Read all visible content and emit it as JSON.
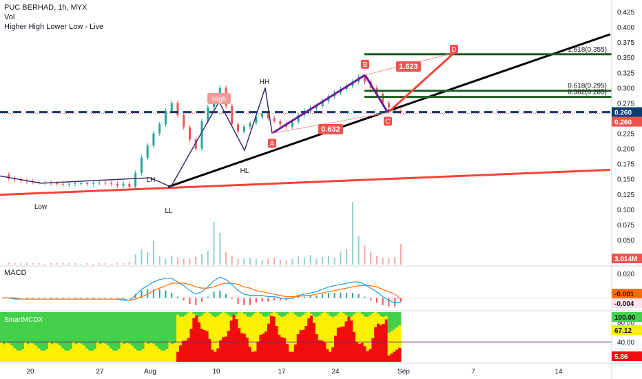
{
  "header": {
    "title": "PUC BERHAD, 1h, MYX",
    "volume_label": "Vol",
    "indicator_label": "Higher High Lower Low - Live"
  },
  "panes": {
    "macd_label": "MACD",
    "smart_label": "SmartMCDX"
  },
  "chart_data": [
    {
      "type": "candlestick",
      "title": "PUC BERHAD, 1h, MYX",
      "x_ticks": [
        "20",
        "27",
        "Aug",
        "10",
        "17",
        "24",
        "Sep",
        "7",
        "14"
      ],
      "y_ticks": [
        "0.425",
        "0.400",
        "0.375",
        "0.350",
        "0.325",
        "0.300",
        "0.275",
        "0.250",
        "0.225",
        "0.200",
        "0.175",
        "0.150",
        "0.125",
        "0.100",
        "0.075",
        "0.050"
      ],
      "ylim": [
        0.0,
        0.435
      ],
      "current_price": "0.260",
      "price_badge_2": "0.260",
      "last_volume": "3.014M",
      "price_path": [
        0.157,
        0.151,
        0.149,
        0.147,
        0.146,
        0.145,
        0.144,
        0.144,
        0.143,
        0.142,
        0.141,
        0.142,
        0.143,
        0.143,
        0.142,
        0.143,
        0.144,
        0.143,
        0.142,
        0.139,
        0.142,
        0.137,
        0.16,
        0.185,
        0.205,
        0.225,
        0.24,
        0.262,
        0.275,
        0.255,
        0.235,
        0.215,
        0.2,
        0.245,
        0.268,
        0.285,
        0.3,
        0.27,
        0.24,
        0.228,
        0.236,
        0.242,
        0.252,
        0.258,
        0.25,
        0.245,
        0.24,
        0.236,
        0.244,
        0.255,
        0.262,
        0.266,
        0.27,
        0.278,
        0.286,
        0.292,
        0.298,
        0.303,
        0.31,
        0.318,
        0.31,
        0.3,
        0.29,
        0.275,
        0.268,
        0.262,
        0.26
      ],
      "volume": [
        0.4,
        0.3,
        0.2,
        0.2,
        0.3,
        0.2,
        0.2,
        0.1,
        0.2,
        0.2,
        0.3,
        0.2,
        0.2,
        0.1,
        0.2,
        0.1,
        0.2,
        0.2,
        0.1,
        0.3,
        0.2,
        0.4,
        1.5,
        2.2,
        1.8,
        3.4,
        1.2,
        0.9,
        1.3,
        1.0,
        0.8,
        0.9,
        1.1,
        1.5,
        2.0,
        6.2,
        4.6,
        1.8,
        1.2,
        0.8,
        0.9,
        1.0,
        0.8,
        0.7,
        0.9,
        1.0,
        0.7,
        0.6,
        0.8,
        1.2,
        1.0,
        1.4,
        0.9,
        1.1,
        1.3,
        1.0,
        1.9,
        2.3,
        9.1,
        4.1,
        2.8,
        1.9,
        1.3,
        1.0,
        0.9,
        1.1,
        3.0
      ],
      "pattern_labels": [
        "High",
        "HH",
        "LH",
        "HL",
        "Low",
        "LL"
      ],
      "abcd_labels": [
        "A",
        "B",
        "C",
        "D"
      ],
      "ratio_labels": [
        "1.623",
        "0.632"
      ],
      "fib_levels": [
        {
          "label": "1.618(0.355)",
          "value": 0.355
        },
        {
          "label": "0.618(0.295)",
          "value": 0.295
        },
        {
          "label": "0.382(0.285)",
          "value": 0.285
        }
      ],
      "horizontal_dashed_level": 0.26,
      "colors": {
        "up": "#26a69a",
        "down": "#ef5350",
        "fib_line": "#1b5e20",
        "trend_black": "#000000",
        "trend_red": "#f44336",
        "dashed": "#0d3a73",
        "pattern_purple": "#3c2a74"
      }
    },
    {
      "type": "line",
      "title": "MACD",
      "y_ticks": [
        "0.020",
        "0.000"
      ],
      "ylim": [
        -0.01,
        0.025
      ],
      "badges": [
        "-0.001",
        "-0.004"
      ],
      "series": [
        {
          "values": [
            0.0,
            0.0,
            -0.001,
            -0.001,
            -0.001,
            -0.001,
            -0.001,
            -0.001,
            -0.001,
            -0.001,
            -0.001,
            -0.001,
            -0.001,
            -0.001,
            -0.001,
            -0.001,
            -0.001,
            -0.001,
            -0.001,
            -0.001,
            -0.002,
            -0.002,
            0.002,
            0.007,
            0.01,
            0.013,
            0.015,
            0.016,
            0.016,
            0.013,
            0.01,
            0.006,
            0.003,
            0.005,
            0.009,
            0.014,
            0.017,
            0.015,
            0.011,
            0.006,
            0.003,
            0.002,
            0.002,
            0.002,
            0.001,
            0.001,
            0.0,
            -0.001,
            0.0,
            0.002,
            0.003,
            0.004,
            0.005,
            0.007,
            0.009,
            0.01,
            0.011,
            0.012,
            0.013,
            0.013,
            0.011,
            0.008,
            0.005,
            0.001,
            -0.002,
            -0.004,
            -0.004
          ]
        },
        {
          "values": [
            0.0,
            0.0,
            0.0,
            -0.001,
            -0.001,
            -0.001,
            -0.001,
            -0.001,
            -0.001,
            -0.001,
            -0.001,
            -0.001,
            -0.001,
            -0.001,
            -0.001,
            -0.001,
            -0.001,
            -0.001,
            -0.001,
            -0.001,
            -0.001,
            -0.002,
            -0.001,
            0.001,
            0.003,
            0.006,
            0.008,
            0.01,
            0.012,
            0.012,
            0.012,
            0.011,
            0.009,
            0.008,
            0.008,
            0.009,
            0.011,
            0.012,
            0.012,
            0.011,
            0.009,
            0.008,
            0.006,
            0.005,
            0.004,
            0.003,
            0.002,
            0.001,
            0.001,
            0.001,
            0.002,
            0.002,
            0.003,
            0.004,
            0.005,
            0.006,
            0.007,
            0.008,
            0.009,
            0.01,
            0.01,
            0.01,
            0.009,
            0.007,
            0.005,
            0.003,
            -0.001
          ]
        }
      ]
    },
    {
      "type": "bar",
      "title": "SmartMCDX",
      "y_ticks": [
        "80.00",
        "40.00"
      ],
      "ylim": [
        0,
        100
      ],
      "badges": [
        "100.00",
        "67.12",
        "5.86"
      ]
    }
  ]
}
